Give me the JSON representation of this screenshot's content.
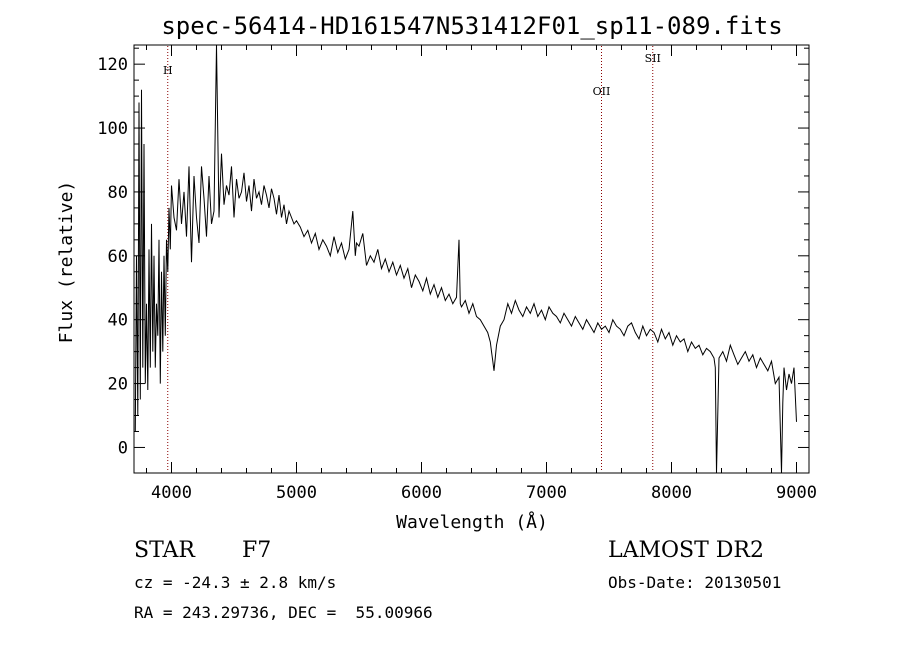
{
  "chart_data": {
    "type": "line",
    "title": "spec-56414-HD161547N531412F01_sp11-089.fits",
    "xlabel": "Wavelength (Å)",
    "ylabel": "Flux (relative)",
    "xlim": [
      3700,
      9100
    ],
    "ylim": [
      -8,
      126
    ],
    "x_ticks": [
      4000,
      5000,
      6000,
      7000,
      8000,
      9000
    ],
    "y_ticks": [
      0,
      20,
      40,
      60,
      80,
      100,
      120
    ],
    "grid": false,
    "line_color": "#000000",
    "line_markers": [
      {
        "label": "H",
        "x": 3970
      },
      {
        "label": "OII",
        "x": 7440
      },
      {
        "label": "SII",
        "x": 7850
      }
    ],
    "marker_color": "#8b0000",
    "series": [
      {
        "x": [
          3710,
          3720,
          3730,
          3740,
          3750,
          3760,
          3770,
          3780,
          3790,
          3800,
          3810,
          3820,
          3830,
          3840,
          3850,
          3860,
          3870,
          3880,
          3890,
          3900,
          3910,
          3920,
          3930,
          3940,
          3950,
          3960,
          3970,
          3980,
          3990,
          4000,
          4020,
          4040,
          4060,
          4080,
          4100,
          4120,
          4140,
          4160,
          4180,
          4200,
          4220,
          4240,
          4260,
          4280,
          4300,
          4320,
          4340,
          4360,
          4380,
          4400,
          4420,
          4440,
          4460,
          4480,
          4500,
          4520,
          4540,
          4560,
          4580,
          4600,
          4620,
          4640,
          4660,
          4680,
          4700,
          4720,
          4740,
          4760,
          4780,
          4800,
          4820,
          4840,
          4860,
          4880,
          4900,
          4920,
          4940,
          4960,
          4980,
          5000,
          5030,
          5060,
          5090,
          5120,
          5150,
          5180,
          5210,
          5240,
          5270,
          5300,
          5330,
          5360,
          5390,
          5420,
          5450,
          5470,
          5480,
          5500,
          5530,
          5560,
          5590,
          5620,
          5650,
          5680,
          5710,
          5740,
          5770,
          5800,
          5830,
          5860,
          5890,
          5920,
          5950,
          5980,
          6010,
          6040,
          6070,
          6100,
          6130,
          6160,
          6190,
          6220,
          6250,
          6280,
          6300,
          6310,
          6320,
          6350,
          6380,
          6410,
          6440,
          6470,
          6500,
          6530,
          6550,
          6560,
          6570,
          6580,
          6600,
          6630,
          6660,
          6690,
          6720,
          6750,
          6780,
          6810,
          6840,
          6870,
          6900,
          6930,
          6960,
          6990,
          7020,
          7050,
          7080,
          7110,
          7140,
          7170,
          7200,
          7230,
          7260,
          7290,
          7320,
          7350,
          7380,
          7410,
          7440,
          7470,
          7500,
          7530,
          7560,
          7590,
          7620,
          7650,
          7680,
          7710,
          7740,
          7770,
          7800,
          7830,
          7860,
          7890,
          7920,
          7950,
          7980,
          8010,
          8040,
          8070,
          8100,
          8130,
          8160,
          8190,
          8220,
          8250,
          8280,
          8310,
          8340,
          8350,
          8360,
          8380,
          8410,
          8440,
          8470,
          8500,
          8530,
          8560,
          8590,
          8620,
          8650,
          8680,
          8710,
          8740,
          8770,
          8800,
          8830,
          8860,
          8880,
          8890,
          8900,
          8920,
          8940,
          8960,
          8980,
          9000
        ],
        "y": [
          5,
          60,
          10,
          108,
          15,
          112,
          25,
          95,
          20,
          45,
          18,
          62,
          25,
          70,
          30,
          60,
          25,
          45,
          35,
          65,
          20,
          55,
          30,
          60,
          35,
          65,
          55,
          75,
          62,
          82,
          72,
          68,
          84,
          70,
          80,
          66,
          88,
          58,
          85,
          72,
          64,
          88,
          78,
          66,
          85,
          70,
          74,
          126,
          72,
          92,
          76,
          82,
          79,
          88,
          72,
          84,
          78,
          80,
          86,
          77,
          82,
          74,
          84,
          78,
          80,
          76,
          82,
          79,
          75,
          81,
          78,
          73,
          79,
          72,
          76,
          70,
          74,
          72,
          70,
          71,
          69,
          66,
          68,
          64,
          67,
          62,
          65,
          63,
          60,
          66,
          61,
          64,
          59,
          62,
          74,
          60,
          64,
          63,
          67,
          57,
          60,
          58,
          62,
          56,
          59,
          55,
          58,
          54,
          57,
          53,
          56,
          50,
          54,
          52,
          49,
          53,
          48,
          51,
          47,
          50,
          46,
          48,
          45,
          47,
          65,
          45,
          44,
          46,
          42,
          45,
          41,
          40,
          38,
          36,
          33,
          30,
          27,
          24,
          32,
          38,
          40,
          45,
          42,
          46,
          43,
          41,
          44,
          42,
          45,
          41,
          43,
          40,
          44,
          42,
          41,
          39,
          42,
          40,
          38,
          41,
          39,
          37,
          40,
          38,
          36,
          39,
          37,
          38,
          36,
          40,
          38,
          37,
          35,
          38,
          39,
          36,
          34,
          38,
          35,
          37,
          36,
          33,
          37,
          34,
          36,
          32,
          35,
          33,
          34,
          30,
          33,
          31,
          32,
          29,
          31,
          30,
          28,
          25,
          -8,
          28,
          30,
          27,
          32,
          29,
          26,
          28,
          30,
          27,
          29,
          25,
          28,
          26,
          24,
          27,
          20,
          22,
          -8,
          14,
          25,
          18,
          23,
          20,
          25,
          8
        ]
      }
    ]
  },
  "footer": {
    "object_label": "STAR",
    "subclass": "F7",
    "survey": "LAMOST DR2",
    "cz": "cz = -24.3 ± 2.8 km/s",
    "obs_date": "Obs-Date: 20130501",
    "coords": "RA = 243.29736, DEC =  55.00966"
  }
}
